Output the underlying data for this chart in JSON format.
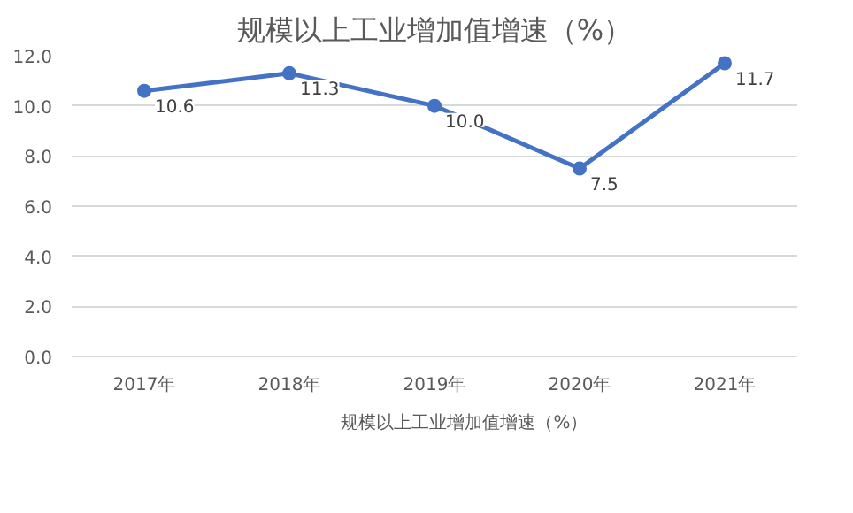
{
  "chart_data": {
    "type": "line",
    "title": "规模以上工业增加值增速（%）",
    "categories": [
      "2017年",
      "2018年",
      "2019年",
      "2020年",
      "2021年"
    ],
    "series": [
      {
        "name": "规模以上工业增加值增速（%）",
        "color": "#4472c4",
        "values": [
          10.6,
          11.3,
          10.0,
          7.5,
          11.7
        ],
        "value_labels": [
          "10.6",
          "11.3",
          "10.0",
          "7.5",
          "11.7"
        ]
      }
    ],
    "ylim": [
      0,
      12
    ],
    "yticks": [
      {
        "value": 0,
        "label": "0.0"
      },
      {
        "value": 2,
        "label": "2.0"
      },
      {
        "value": 4,
        "label": "4.0"
      },
      {
        "value": 6,
        "label": "6.0"
      },
      {
        "value": 8,
        "label": "8.0"
      },
      {
        "value": 10,
        "label": "10.0"
      },
      {
        "value": 12,
        "label": "12.0"
      }
    ],
    "grid": "y",
    "legend": "bottom",
    "marker": "circle",
    "line_style": "solid"
  }
}
